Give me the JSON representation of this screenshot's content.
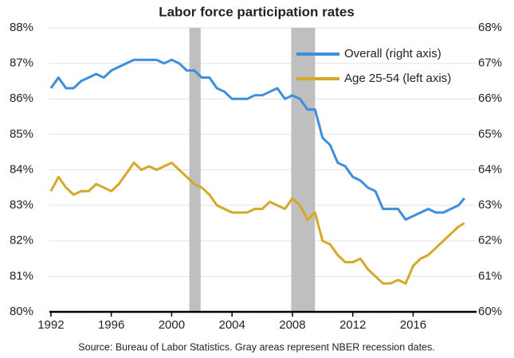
{
  "chart_data": {
    "type": "line",
    "title": "Labor force participation rates",
    "source": "Source: Bureau of Labor Statistics. Gray areas represent NBER recession dates.",
    "x": [
      1992,
      1992.5,
      1993,
      1993.5,
      1994,
      1994.5,
      1995,
      1995.5,
      1996,
      1996.5,
      1997,
      1997.5,
      1998,
      1998.5,
      1999,
      1999.5,
      2000,
      2000.5,
      2001,
      2001.5,
      2002,
      2002.5,
      2003,
      2003.5,
      2004,
      2004.5,
      2005,
      2005.5,
      2006,
      2006.5,
      2007,
      2007.5,
      2008,
      2008.5,
      2009,
      2009.5,
      2010,
      2010.5,
      2011,
      2011.5,
      2012,
      2012.5,
      2013,
      2013.5,
      2014,
      2014.5,
      2015,
      2015.5,
      2016,
      2016.5,
      2017,
      2017.5,
      2018,
      2018.5,
      2019,
      2019.4
    ],
    "series": [
      {
        "name": "Overall (right axis)",
        "color": "#3d8fdc",
        "axis": "y2",
        "values": [
          66.3,
          66.6,
          66.3,
          66.3,
          66.5,
          66.6,
          66.7,
          66.6,
          66.8,
          66.9,
          67.0,
          67.1,
          67.1,
          67.1,
          67.1,
          67.0,
          67.1,
          67.0,
          66.8,
          66.8,
          66.6,
          66.6,
          66.3,
          66.2,
          66.0,
          66.0,
          66.0,
          66.1,
          66.1,
          66.2,
          66.3,
          66.0,
          66.1,
          66.0,
          65.7,
          65.7,
          64.9,
          64.7,
          64.2,
          64.1,
          63.8,
          63.7,
          63.5,
          63.4,
          62.9,
          62.9,
          62.9,
          62.6,
          62.7,
          62.8,
          62.9,
          62.8,
          62.8,
          62.9,
          63.0,
          63.2
        ]
      },
      {
        "name": "Age 25-54 (left axis)",
        "color": "#d6a82a",
        "axis": "y",
        "values": [
          83.4,
          83.8,
          83.5,
          83.3,
          83.4,
          83.4,
          83.6,
          83.5,
          83.4,
          83.6,
          83.9,
          84.2,
          84.0,
          84.1,
          84.0,
          84.1,
          84.2,
          84.0,
          83.8,
          83.6,
          83.5,
          83.3,
          83.0,
          82.9,
          82.8,
          82.8,
          82.8,
          82.9,
          82.9,
          83.1,
          83.0,
          82.9,
          83.2,
          83.0,
          82.6,
          82.8,
          82.0,
          81.9,
          81.6,
          81.4,
          81.4,
          81.5,
          81.2,
          81.0,
          80.8,
          80.8,
          80.9,
          80.8,
          81.3,
          81.5,
          81.6,
          81.8,
          82.0,
          82.2,
          82.4,
          82.5
        ]
      }
    ],
    "recessions": [
      [
        2001.17,
        2001.92
      ],
      [
        2007.92,
        2009.5
      ]
    ],
    "recession_color": "#bfbfbf",
    "xlim": [
      1991.9,
      2020.2
    ],
    "xticks": [
      1992,
      1996,
      2000,
      2004,
      2008,
      2012,
      2016
    ],
    "ylim": [
      80,
      88
    ],
    "yticks": [
      {
        "value": 80,
        "label": "80%"
      },
      {
        "value": 81,
        "label": "81%"
      },
      {
        "value": 82,
        "label": "82%"
      },
      {
        "value": 83,
        "label": "83%"
      },
      {
        "value": 84,
        "label": "84%"
      },
      {
        "value": 85,
        "label": "85%"
      },
      {
        "value": 86,
        "label": "86%"
      },
      {
        "value": 87,
        "label": "87%"
      },
      {
        "value": 88,
        "label": "88%"
      }
    ],
    "y2lim": [
      60,
      68
    ],
    "y2ticks": [
      {
        "value": 60,
        "label": "60%"
      },
      {
        "value": 61,
        "label": "61%"
      },
      {
        "value": 62,
        "label": "62%"
      },
      {
        "value": 63,
        "label": "63%"
      },
      {
        "value": 64,
        "label": "64%"
      },
      {
        "value": 65,
        "label": "65%"
      },
      {
        "value": 66,
        "label": "66%"
      },
      {
        "value": 67,
        "label": "67%"
      },
      {
        "value": 68,
        "label": "68%"
      }
    ],
    "grid": true,
    "legend": "upper right"
  }
}
